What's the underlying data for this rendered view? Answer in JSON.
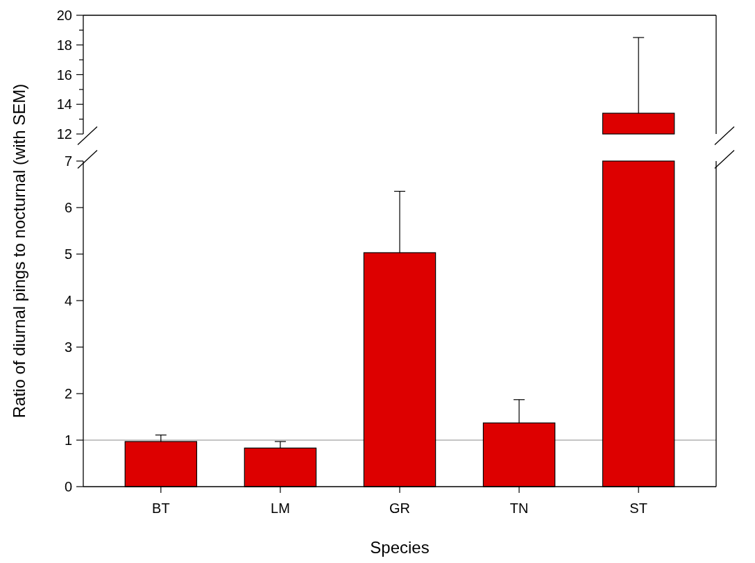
{
  "chart_data": [
    {
      "type": "bar",
      "categories": [
        null,
        null,
        null,
        null,
        null
      ],
      "color": "#dd0000",
      "values": [
        null,
        null,
        null,
        null,
        13.4
      ],
      "errors": [
        null,
        null,
        null,
        null,
        5.1
      ],
      "ylim": [
        12,
        20
      ],
      "yticks": [
        12,
        {
          "value": 13,
          "label": null
        },
        14,
        {
          "value": 15,
          "label": null
        },
        16,
        {
          "value": 17,
          "label": null
        },
        18,
        {
          "value": 19,
          "label": null
        },
        20
      ],
      "tick_labels": "y"
    },
    {
      "type": "bar",
      "categories": [
        "BT",
        "LM",
        "GR",
        "TN",
        "ST"
      ],
      "color": "#dd0000",
      "values": [
        0.97,
        0.83,
        5.03,
        1.37,
        7
      ],
      "errors": [
        0.14,
        0.14,
        1.32,
        0.5,
        null
      ],
      "ylim": [
        0,
        7
      ],
      "yticks": [
        0,
        1,
        2,
        3,
        4,
        5,
        6,
        7
      ],
      "ref_lines": [
        {
          "axis": "y",
          "value": 1,
          "color": "#b0b0b0"
        }
      ],
      "xlabel": "Species",
      "ylabel": "Ratio of diurnal pings to nocturnal (with SEM)"
    }
  ]
}
